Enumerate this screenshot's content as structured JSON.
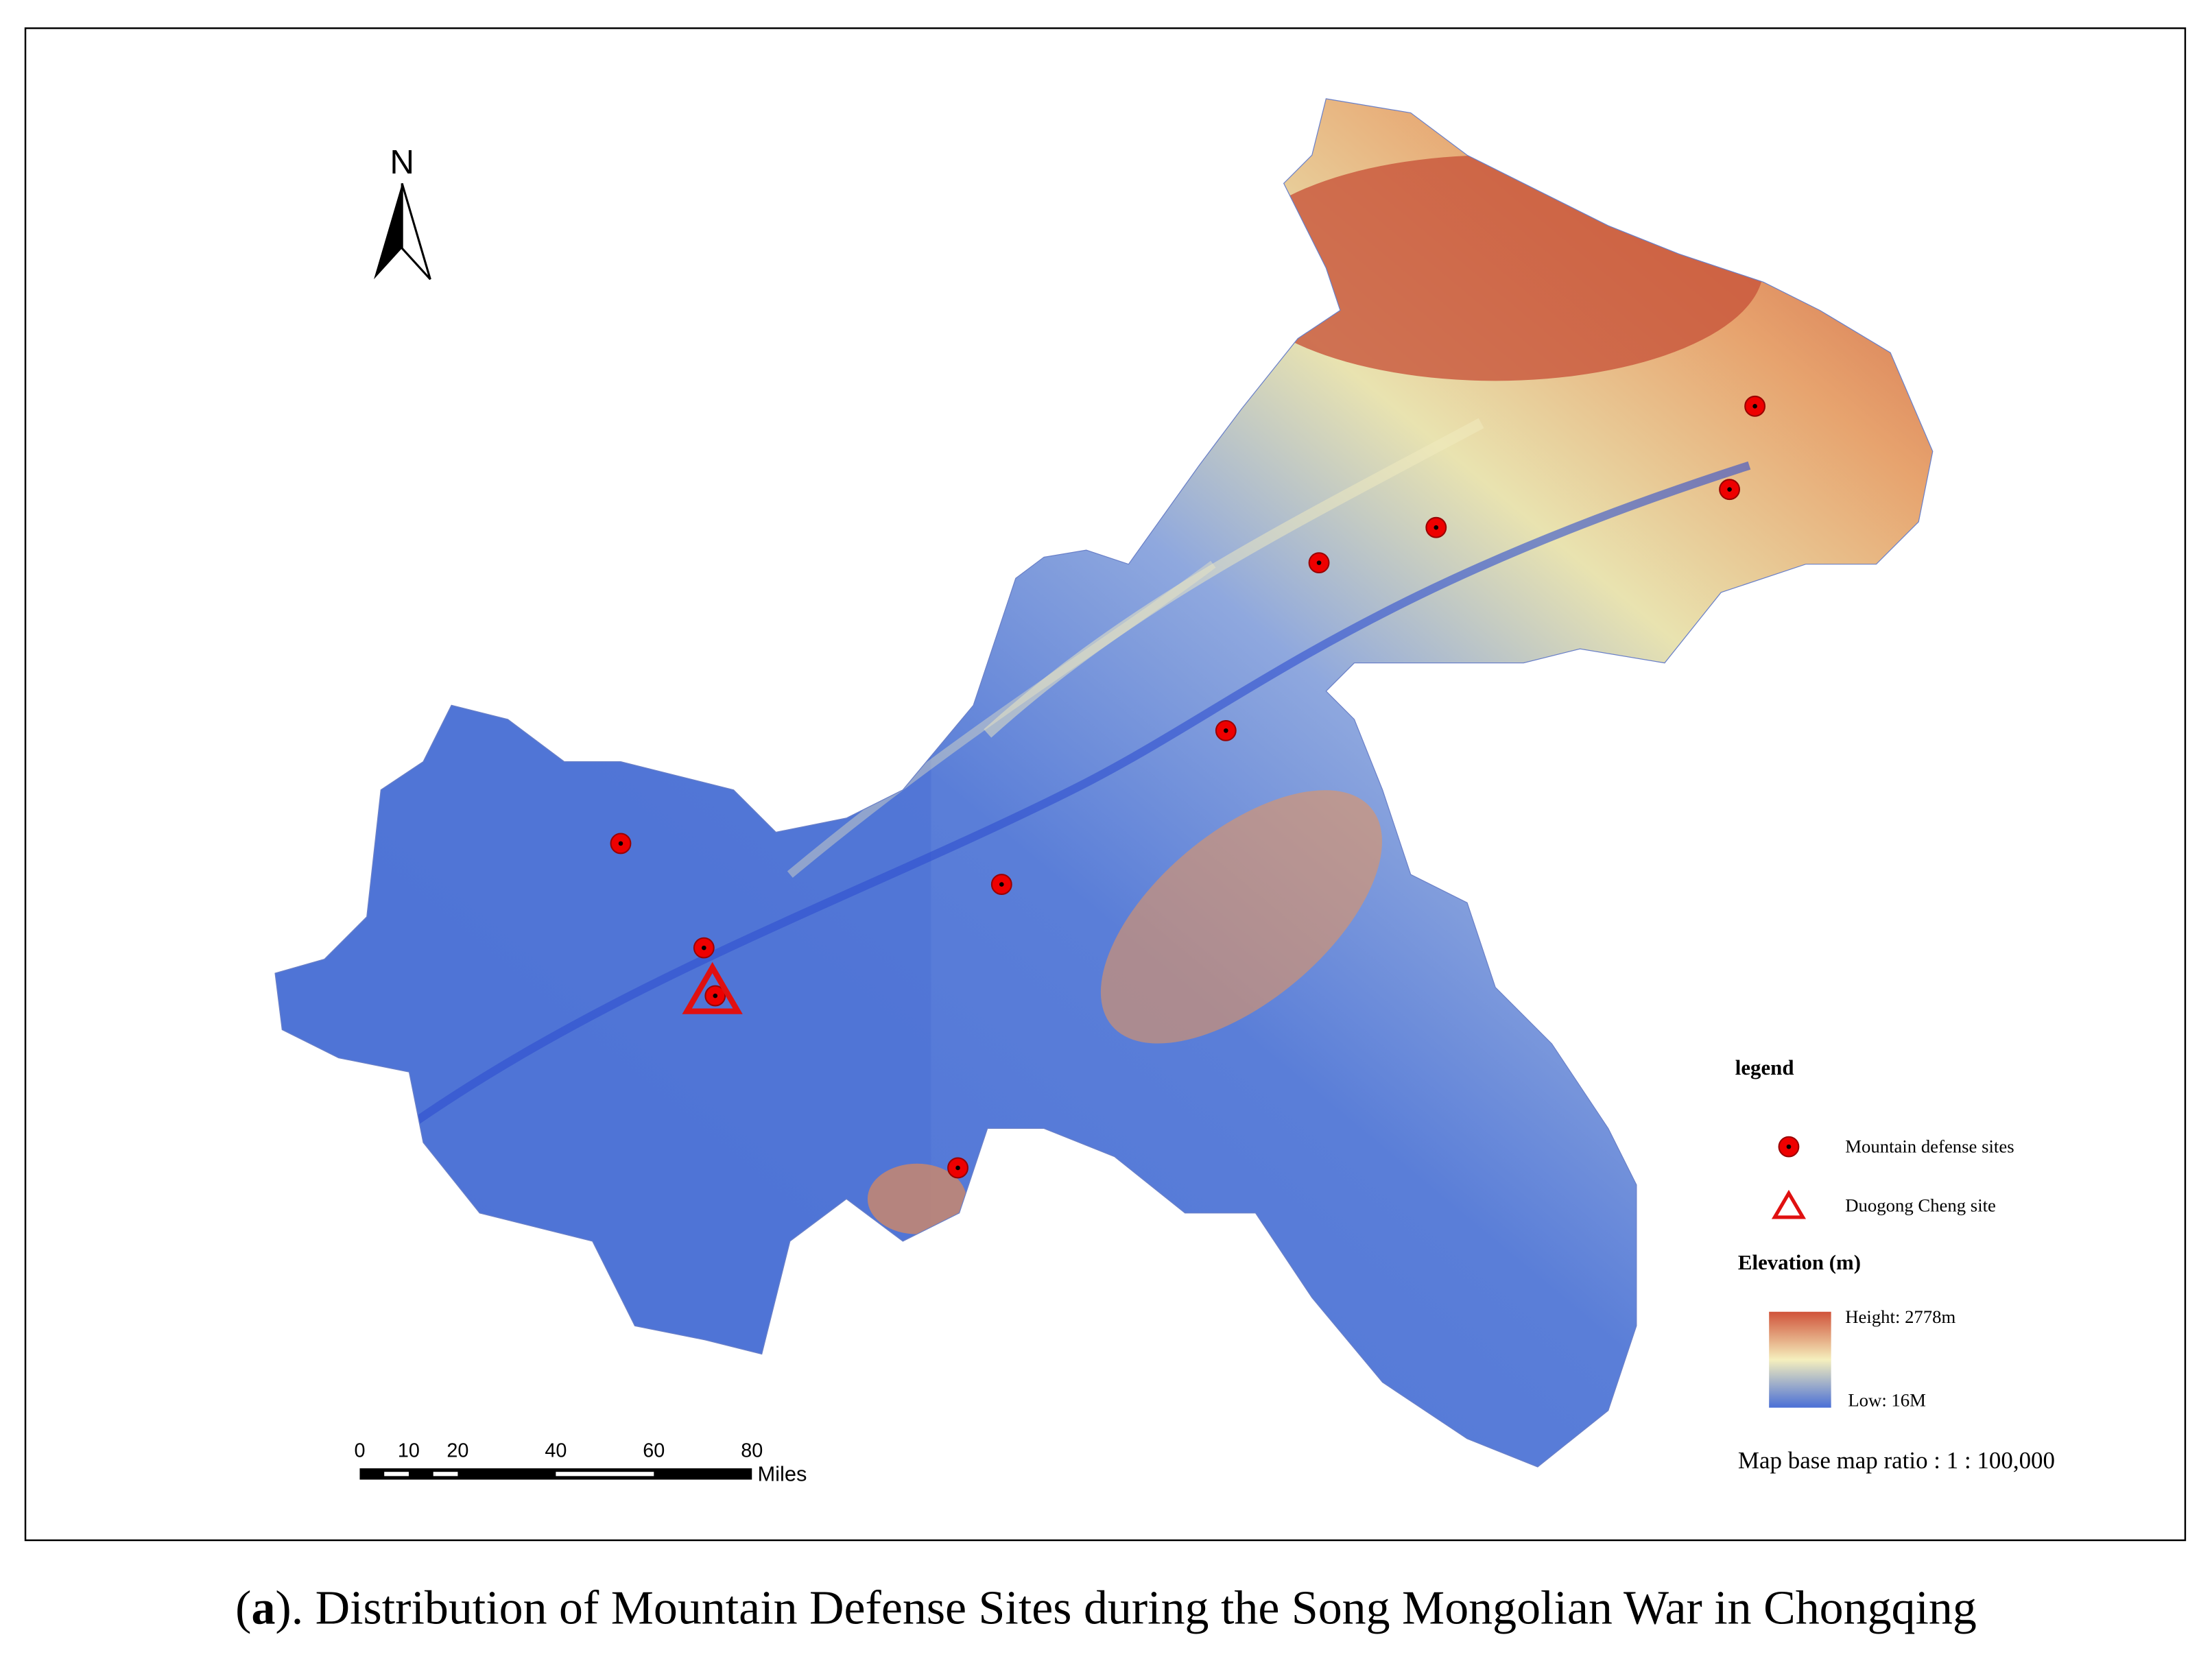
{
  "north_arrow": {
    "label": "N"
  },
  "scale_bar": {
    "ticks": [
      0,
      10,
      20,
      40,
      60,
      80
    ],
    "unit": "Miles"
  },
  "legend": {
    "title": "legend",
    "items": [
      {
        "label": "Mountain defense sites"
      },
      {
        "label": "Duogong Cheng site"
      }
    ],
    "elevation": {
      "title": "Elevation (m)",
      "high": "Height: 2778m",
      "low": "Low: 16M"
    }
  },
  "ratio": "Map base map ratio : 1 : 100,000",
  "caption": {
    "open": "(",
    "letter": "a",
    "text": "). Distribution of Mountain Defense Sites during the Song Mongolian War in Chongqing"
  }
}
